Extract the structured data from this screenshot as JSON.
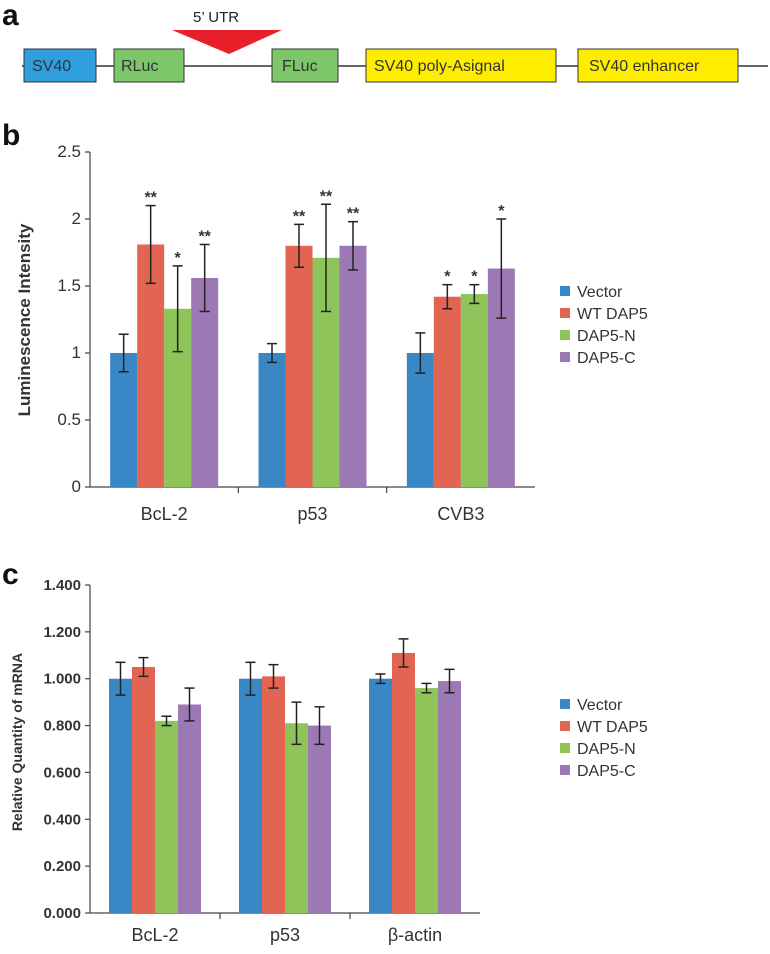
{
  "panels": {
    "a": "a",
    "b": "b",
    "c": "c"
  },
  "construct": {
    "utr_label": "5’ UTR",
    "elements": [
      {
        "label": "SV40",
        "color": "#2e9fdc"
      },
      {
        "label": "RLuc",
        "color": "#7ec66a"
      },
      {
        "label": "FLuc",
        "color": "#7ec66a"
      },
      {
        "label": "SV40 poly-Asignal",
        "color": "#ffed00"
      },
      {
        "label": "SV40 enhancer",
        "color": "#ffed00"
      }
    ],
    "utr_color": "#e8202a"
  },
  "series_colors": [
    "#3a87c6",
    "#e26452",
    "#8ec45a",
    "#9c78b5"
  ],
  "chart_data": [
    {
      "type": "bar",
      "title": "",
      "xlabel": "",
      "ylabel": "Luminescence Intensity",
      "ylim": [
        0,
        2.5
      ],
      "yticks": [
        "0",
        "0.5",
        "1",
        "1.5",
        "2",
        "2.5"
      ],
      "categories": [
        "BcL-2",
        "p53",
        "CVB3"
      ],
      "series": [
        {
          "name": "Vector",
          "values": [
            1.0,
            1.0,
            1.0
          ],
          "errors": [
            0.14,
            0.07,
            0.15
          ],
          "stars": [
            "",
            "",
            ""
          ]
        },
        {
          "name": "WT DAP5",
          "values": [
            1.81,
            1.8,
            1.42
          ],
          "errors": [
            0.29,
            0.16,
            0.09
          ],
          "stars": [
            "**",
            "**",
            "*"
          ]
        },
        {
          "name": "DAP5-N",
          "values": [
            1.33,
            1.71,
            1.44
          ],
          "errors": [
            0.32,
            0.4,
            0.07
          ],
          "stars": [
            "*",
            "**",
            "*"
          ]
        },
        {
          "name": "DAP5-C",
          "values": [
            1.56,
            1.8,
            1.63
          ],
          "errors": [
            0.25,
            0.18,
            0.37
          ],
          "stars": [
            "**",
            "**",
            "*"
          ]
        }
      ]
    },
    {
      "type": "bar",
      "title": "",
      "xlabel": "",
      "ylabel": "Relative Quantity of mRNA",
      "ylim": [
        0,
        1.4
      ],
      "yticks": [
        "0.000",
        "0.200",
        "0.400",
        "0.600",
        "0.800",
        "1.000",
        "1.200",
        "1.400"
      ],
      "categories": [
        "BcL-2",
        "p53",
        "β-actin"
      ],
      "series": [
        {
          "name": "Vector",
          "values": [
            1.0,
            1.0,
            1.0
          ],
          "errors": [
            0.07,
            0.07,
            0.02
          ]
        },
        {
          "name": "WT DAP5",
          "values": [
            1.05,
            1.01,
            1.11
          ],
          "errors": [
            0.04,
            0.05,
            0.06
          ]
        },
        {
          "name": "DAP5-N",
          "values": [
            0.82,
            0.81,
            0.96
          ],
          "errors": [
            0.02,
            0.09,
            0.02
          ]
        },
        {
          "name": "DAP5-C",
          "values": [
            0.89,
            0.8,
            0.99
          ],
          "errors": [
            0.07,
            0.08,
            0.05
          ]
        }
      ]
    }
  ]
}
